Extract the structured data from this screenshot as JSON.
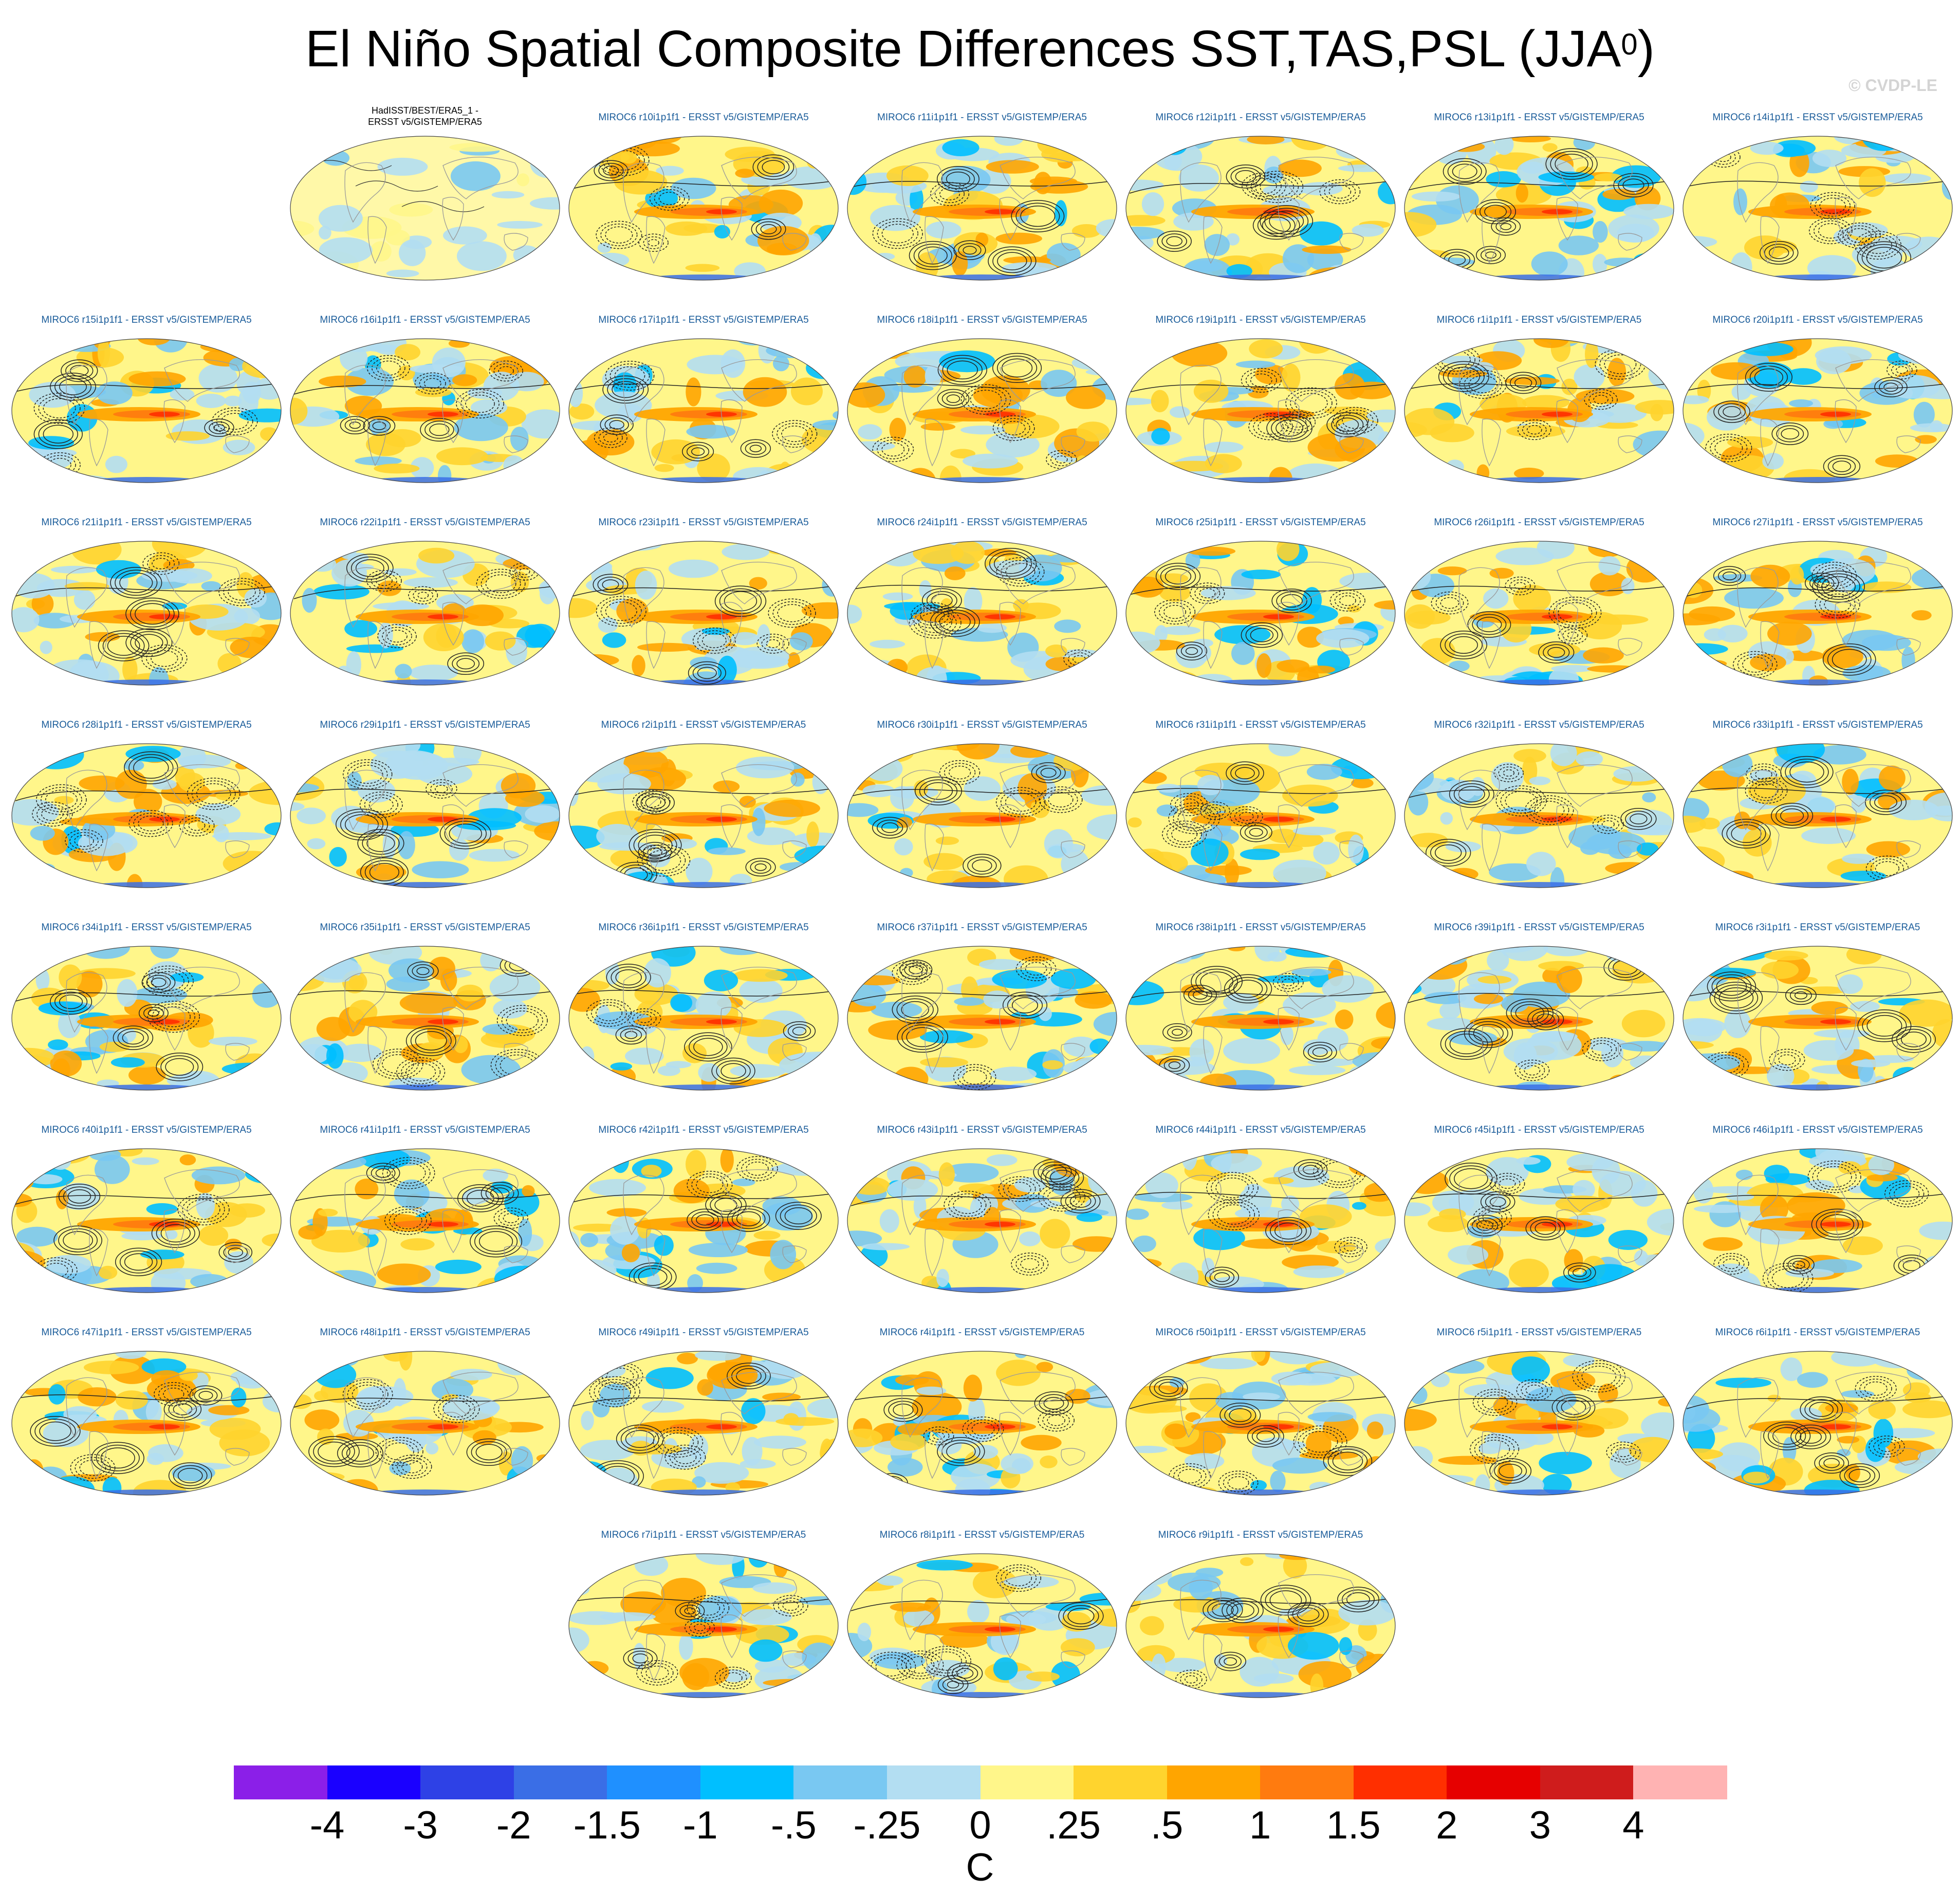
{
  "title": {
    "main": "El Niño Spatial Composite Differences SST,TAS,PSL (JJA",
    "superscript": "0",
    "close": ")"
  },
  "copyright": "© CVDP-LE",
  "chart_data": {
    "type": "heatmap",
    "title": "El Niño Spatial Composite Differences SST,TAS,PSL (JJA0)",
    "variable_shaded": "SST/TAS composite difference",
    "variable_contoured": "PSL composite difference",
    "units": "C",
    "colorbar": {
      "levels": [
        "-4",
        "-3",
        "-2",
        "-1.5",
        "-1",
        "-.5",
        "-.25",
        "0",
        ".25",
        ".5",
        "1",
        "1.5",
        "2",
        "3",
        "4"
      ],
      "colors": [
        "#8b1fe8",
        "#1a00ff",
        "#2e41e6",
        "#3a6ee6",
        "#1f90ff",
        "#00bfff",
        "#79c8f2",
        "#b3def2",
        "#fff68a",
        "#ffd42e",
        "#ffa500",
        "#ff7b0f",
        "#ff2f00",
        "#e60000",
        "#cf1c1c",
        "#ffb3b3"
      ]
    },
    "panels": [
      {
        "label": "HadISST/BEST/ERA5_1 -\nERSST v5/GISTEMP/ERA5",
        "observational": true
      },
      {
        "label": "MIROC6 r10i1p1f1 - ERSST v5/GISTEMP/ERA5"
      },
      {
        "label": "MIROC6 r11i1p1f1 - ERSST v5/GISTEMP/ERA5"
      },
      {
        "label": "MIROC6 r12i1p1f1 - ERSST v5/GISTEMP/ERA5"
      },
      {
        "label": "MIROC6 r13i1p1f1 - ERSST v5/GISTEMP/ERA5"
      },
      {
        "label": "MIROC6 r14i1p1f1 - ERSST v5/GISTEMP/ERA5"
      },
      {
        "label": "MIROC6 r15i1p1f1 - ERSST v5/GISTEMP/ERA5"
      },
      {
        "label": "MIROC6 r16i1p1f1 - ERSST v5/GISTEMP/ERA5"
      },
      {
        "label": "MIROC6 r17i1p1f1 - ERSST v5/GISTEMP/ERA5"
      },
      {
        "label": "MIROC6 r18i1p1f1 - ERSST v5/GISTEMP/ERA5"
      },
      {
        "label": "MIROC6 r19i1p1f1 - ERSST v5/GISTEMP/ERA5"
      },
      {
        "label": "MIROC6 r1i1p1f1 - ERSST v5/GISTEMP/ERA5"
      },
      {
        "label": "MIROC6 r20i1p1f1 - ERSST v5/GISTEMP/ERA5"
      },
      {
        "label": "MIROC6 r21i1p1f1 - ERSST v5/GISTEMP/ERA5"
      },
      {
        "label": "MIROC6 r22i1p1f1 - ERSST v5/GISTEMP/ERA5"
      },
      {
        "label": "MIROC6 r23i1p1f1 - ERSST v5/GISTEMP/ERA5"
      },
      {
        "label": "MIROC6 r24i1p1f1 - ERSST v5/GISTEMP/ERA5"
      },
      {
        "label": "MIROC6 r25i1p1f1 - ERSST v5/GISTEMP/ERA5"
      },
      {
        "label": "MIROC6 r26i1p1f1 - ERSST v5/GISTEMP/ERA5"
      },
      {
        "label": "MIROC6 r27i1p1f1 - ERSST v5/GISTEMP/ERA5"
      },
      {
        "label": "MIROC6 r28i1p1f1 - ERSST v5/GISTEMP/ERA5"
      },
      {
        "label": "MIROC6 r29i1p1f1 - ERSST v5/GISTEMP/ERA5"
      },
      {
        "label": "MIROC6 r2i1p1f1 - ERSST v5/GISTEMP/ERA5"
      },
      {
        "label": "MIROC6 r30i1p1f1 - ERSST v5/GISTEMP/ERA5"
      },
      {
        "label": "MIROC6 r31i1p1f1 - ERSST v5/GISTEMP/ERA5"
      },
      {
        "label": "MIROC6 r32i1p1f1 - ERSST v5/GISTEMP/ERA5"
      },
      {
        "label": "MIROC6 r33i1p1f1 - ERSST v5/GISTEMP/ERA5"
      },
      {
        "label": "MIROC6 r34i1p1f1 - ERSST v5/GISTEMP/ERA5"
      },
      {
        "label": "MIROC6 r35i1p1f1 - ERSST v5/GISTEMP/ERA5"
      },
      {
        "label": "MIROC6 r36i1p1f1 - ERSST v5/GISTEMP/ERA5"
      },
      {
        "label": "MIROC6 r37i1p1f1 - ERSST v5/GISTEMP/ERA5"
      },
      {
        "label": "MIROC6 r38i1p1f1 - ERSST v5/GISTEMP/ERA5"
      },
      {
        "label": "MIROC6 r39i1p1f1 - ERSST v5/GISTEMP/ERA5"
      },
      {
        "label": "MIROC6 r3i1p1f1 - ERSST v5/GISTEMP/ERA5"
      },
      {
        "label": "MIROC6 r40i1p1f1 - ERSST v5/GISTEMP/ERA5"
      },
      {
        "label": "MIROC6 r41i1p1f1 - ERSST v5/GISTEMP/ERA5"
      },
      {
        "label": "MIROC6 r42i1p1f1 - ERSST v5/GISTEMP/ERA5"
      },
      {
        "label": "MIROC6 r43i1p1f1 - ERSST v5/GISTEMP/ERA5"
      },
      {
        "label": "MIROC6 r44i1p1f1 - ERSST v5/GISTEMP/ERA5"
      },
      {
        "label": "MIROC6 r45i1p1f1 - ERSST v5/GISTEMP/ERA5"
      },
      {
        "label": "MIROC6 r46i1p1f1 - ERSST v5/GISTEMP/ERA5"
      },
      {
        "label": "MIROC6 r47i1p1f1 - ERSST v5/GISTEMP/ERA5"
      },
      {
        "label": "MIROC6 r48i1p1f1 - ERSST v5/GISTEMP/ERA5"
      },
      {
        "label": "MIROC6 r49i1p1f1 - ERSST v5/GISTEMP/ERA5"
      },
      {
        "label": "MIROC6 r4i1p1f1 - ERSST v5/GISTEMP/ERA5"
      },
      {
        "label": "MIROC6 r50i1p1f1 - ERSST v5/GISTEMP/ERA5"
      },
      {
        "label": "MIROC6 r5i1p1f1 - ERSST v5/GISTEMP/ERA5"
      },
      {
        "label": "MIROC6 r6i1p1f1 - ERSST v5/GISTEMP/ERA5"
      },
      {
        "label": "MIROC6 r7i1p1f1 - ERSST v5/GISTEMP/ERA5"
      },
      {
        "label": "MIROC6 r8i1p1f1 - ERSST v5/GISTEMP/ERA5"
      },
      {
        "label": "MIROC6 r9i1p1f1 - ERSST v5/GISTEMP/ERA5"
      }
    ]
  }
}
